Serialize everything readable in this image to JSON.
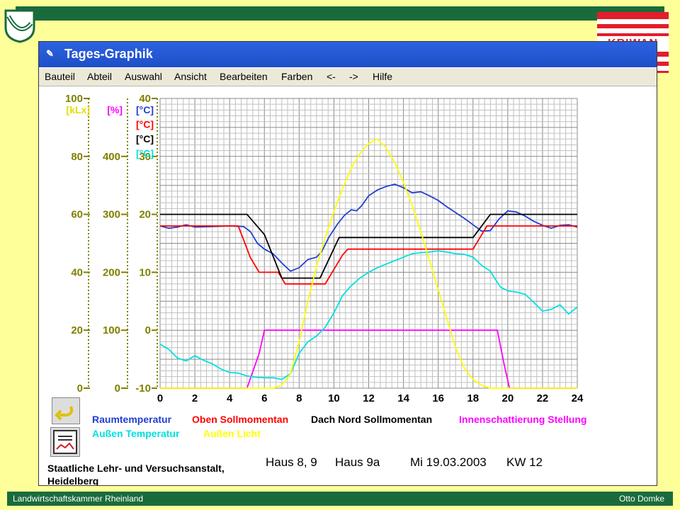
{
  "window": {
    "title": "Tages-Graphik"
  },
  "menu": [
    "Bauteil",
    "Abteil",
    "Auswahl",
    "Ansicht",
    "Bearbeiten",
    "Farben",
    "<-",
    "->",
    "Hilfe"
  ],
  "footer": {
    "left": "Landwirtschaftskammer Rheinland",
    "right": "Otto Domke"
  },
  "logo": {
    "text": "KRIWAN"
  },
  "info": {
    "institution_line1": "Staatliche Lehr- und Versuchsanstalt,",
    "institution_line2": "Heidelberg",
    "house": "Haus 8, 9",
    "house2": "Haus 9a",
    "date": "Mi 19.03.2003",
    "week": "KW  12"
  },
  "colors": {
    "band": "#1a6b3c",
    "yellow_bg": "#ffff99",
    "olive": "#808000",
    "yellow": "#ffff00",
    "magenta": "#ff00ff",
    "blue": "#0000cc",
    "red": "#ff0000",
    "black": "#000000",
    "cyan": "#00e0e0"
  },
  "chart_data": {
    "type": "line",
    "x_ticks": [
      "0",
      "2",
      "4",
      "6",
      "8",
      "10",
      "12",
      "14",
      "16",
      "18",
      "20",
      "22",
      "24"
    ],
    "xlim": [
      0,
      24
    ],
    "axes": [
      {
        "unit": "[kLx]",
        "ticks": [
          "0",
          "20",
          "40",
          "60",
          "80",
          "100"
        ],
        "range": [
          0,
          100
        ]
      },
      {
        "unit": "[%]",
        "ticks": [
          "0",
          "100",
          "200",
          "300",
          "400"
        ],
        "range": [
          0,
          500
        ]
      },
      {
        "unit": "[°C]",
        "ticks": [
          "-10",
          "0",
          "10",
          "20",
          "30",
          "40"
        ],
        "range": [
          -10,
          40
        ]
      }
    ],
    "temp_units": [
      "[°C]",
      "[°C]",
      "[°C]",
      "[°C]"
    ],
    "legend": [
      "Raumtemperatur",
      "Oben Sollmomentan",
      "Dach Nord Sollmomentan",
      "Innenschattierung Stellung",
      "Außen Temperatur",
      "Außen Licht"
    ],
    "series": [
      {
        "name": "Raumtemperatur",
        "axis": "°C",
        "color": "#1f3fd0",
        "points": [
          [
            0,
            18
          ],
          [
            0.5,
            17.6
          ],
          [
            1,
            17.8
          ],
          [
            1.5,
            18.2
          ],
          [
            2,
            17.8
          ],
          [
            3,
            17.9
          ],
          [
            4,
            18
          ],
          [
            4.8,
            17.9
          ],
          [
            5.2,
            17
          ],
          [
            5.6,
            15
          ],
          [
            6,
            14
          ],
          [
            6.5,
            13.2
          ],
          [
            7,
            11.6
          ],
          [
            7.5,
            10.2
          ],
          [
            8,
            10.8
          ],
          [
            8.5,
            12.2
          ],
          [
            9,
            12.6
          ],
          [
            9.3,
            13.6
          ],
          [
            9.7,
            16
          ],
          [
            10.2,
            18.3
          ],
          [
            10.6,
            19.8
          ],
          [
            11,
            20.8
          ],
          [
            11.3,
            20.6
          ],
          [
            11.6,
            21.5
          ],
          [
            12,
            23.2
          ],
          [
            12.5,
            24.2
          ],
          [
            13,
            24.8
          ],
          [
            13.5,
            25.2
          ],
          [
            14,
            24.6
          ],
          [
            14.5,
            23.7
          ],
          [
            15,
            23.9
          ],
          [
            15.5,
            23.2
          ],
          [
            16,
            22.4
          ],
          [
            16.5,
            21.3
          ],
          [
            17,
            20.3
          ],
          [
            17.5,
            19.3
          ],
          [
            18,
            18.2
          ],
          [
            18.5,
            17.1
          ],
          [
            19,
            17.2
          ],
          [
            19.5,
            19.2
          ],
          [
            20,
            20.6
          ],
          [
            20.5,
            20.4
          ],
          [
            21,
            19.7
          ],
          [
            21.5,
            18.8
          ],
          [
            22,
            18.1
          ],
          [
            22.5,
            17.6
          ],
          [
            23,
            18.1
          ],
          [
            23.5,
            18.2
          ],
          [
            24,
            17.8
          ]
        ]
      },
      {
        "name": "Oben Sollmomentan",
        "axis": "°C",
        "color": "#ff0000",
        "points": [
          [
            0,
            18
          ],
          [
            4.5,
            18
          ],
          [
            5.2,
            12.5
          ],
          [
            5.7,
            10
          ],
          [
            6.8,
            10
          ],
          [
            7.2,
            8
          ],
          [
            9.5,
            8
          ],
          [
            10.5,
            13
          ],
          [
            10.8,
            14
          ],
          [
            18,
            14
          ],
          [
            18.8,
            18
          ],
          [
            24,
            18
          ]
        ]
      },
      {
        "name": "Dach Nord Sollmomentan",
        "axis": "°C",
        "color": "#000000",
        "points": [
          [
            0,
            20
          ],
          [
            5,
            20
          ],
          [
            6,
            16.5
          ],
          [
            7,
            9
          ],
          [
            9.2,
            9
          ],
          [
            10.3,
            16
          ],
          [
            18,
            16
          ],
          [
            19,
            20
          ],
          [
            24,
            20
          ]
        ]
      },
      {
        "name": "Innenschattierung Stellung",
        "axis": "%",
        "color": "#ff00ff",
        "points": [
          [
            0,
            0
          ],
          [
            5,
            0
          ],
          [
            5.7,
            60
          ],
          [
            6,
            100
          ],
          [
            19.4,
            100
          ],
          [
            19.8,
            40
          ],
          [
            20.1,
            0
          ],
          [
            24,
            0
          ]
        ]
      },
      {
        "name": "Außen Temperatur",
        "axis": "°C",
        "color": "#00e0e0",
        "points": [
          [
            0,
            -2.4
          ],
          [
            0.5,
            -3.3
          ],
          [
            1,
            -4.8
          ],
          [
            1.5,
            -5.3
          ],
          [
            2,
            -4.4
          ],
          [
            2.5,
            -5.2
          ],
          [
            3,
            -5.8
          ],
          [
            3.5,
            -6.7
          ],
          [
            4,
            -7.3
          ],
          [
            4.5,
            -7.4
          ],
          [
            5,
            -7.9
          ],
          [
            5.5,
            -8.1
          ],
          [
            6,
            -8.2
          ],
          [
            6.5,
            -8.2
          ],
          [
            7,
            -8.5
          ],
          [
            7.5,
            -7.5
          ],
          [
            8,
            -4
          ],
          [
            8.5,
            -2
          ],
          [
            9,
            -1
          ],
          [
            9.5,
            0.5
          ],
          [
            10,
            3
          ],
          [
            10.5,
            6
          ],
          [
            11,
            7.7
          ],
          [
            11.5,
            9
          ],
          [
            12,
            10
          ],
          [
            12.5,
            10.8
          ],
          [
            13,
            11.4
          ],
          [
            13.5,
            12
          ],
          [
            14,
            12.6
          ],
          [
            14.5,
            13.2
          ],
          [
            15,
            13.4
          ],
          [
            15.5,
            13.5
          ],
          [
            16,
            13.7
          ],
          [
            16.5,
            13.5
          ],
          [
            17,
            13.2
          ],
          [
            17.5,
            13.1
          ],
          [
            18,
            12.6
          ],
          [
            18.5,
            11.2
          ],
          [
            19,
            10.2
          ],
          [
            19.3,
            8.7
          ],
          [
            19.6,
            7.4
          ],
          [
            20,
            6.8
          ],
          [
            20.5,
            6.6
          ],
          [
            21,
            6.2
          ],
          [
            21.5,
            4.8
          ],
          [
            22,
            3.3
          ],
          [
            22.5,
            3.6
          ],
          [
            23,
            4.4
          ],
          [
            23.5,
            2.8
          ],
          [
            24,
            4
          ]
        ]
      },
      {
        "name": "Außen Licht",
        "axis": "kLx",
        "color": "#ffff00",
        "points": [
          [
            0,
            0
          ],
          [
            6.5,
            0
          ],
          [
            7,
            1
          ],
          [
            7.5,
            5
          ],
          [
            8,
            16
          ],
          [
            8.5,
            30
          ],
          [
            9,
            42
          ],
          [
            9.5,
            52
          ],
          [
            10,
            61
          ],
          [
            10.5,
            69
          ],
          [
            11,
            76
          ],
          [
            11.5,
            81
          ],
          [
            12,
            84.5
          ],
          [
            12.5,
            86
          ],
          [
            13,
            83
          ],
          [
            13.5,
            78
          ],
          [
            14,
            71
          ],
          [
            14.5,
            63
          ],
          [
            15,
            54
          ],
          [
            15.5,
            44
          ],
          [
            16,
            34
          ],
          [
            16.5,
            24
          ],
          [
            17,
            14
          ],
          [
            17.5,
            7
          ],
          [
            18,
            3
          ],
          [
            18.5,
            1
          ],
          [
            19,
            0
          ],
          [
            24,
            0
          ]
        ]
      }
    ]
  }
}
